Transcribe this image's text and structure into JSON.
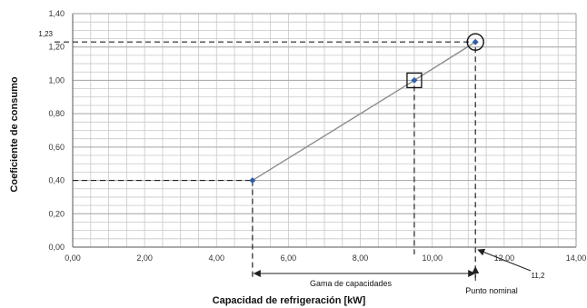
{
  "chart_data": {
    "type": "line",
    "xlabel": "Capacidad de refrigeración [kW]",
    "ylabel": "Coeficiente de consumo",
    "xlim": [
      0,
      14
    ],
    "ylim": [
      0,
      1.4
    ],
    "x_ticks": [
      "0,00",
      "2,00",
      "4,00",
      "6,00",
      "8,00",
      "10,00",
      "12,00",
      "14,00"
    ],
    "y_ticks": [
      "0,00",
      "0,20",
      "0,40",
      "0,60",
      "0,80",
      "1,00",
      "1,20",
      "1,40"
    ],
    "grid": true,
    "series": [
      {
        "x": [
          5.0,
          9.5,
          11.2
        ],
        "y": [
          0.4,
          1.0,
          1.23
        ]
      }
    ],
    "annotations": {
      "y_value_label": "1,23",
      "x_value_label": "11,2",
      "range_label": "Gama de capacidades",
      "nominal_label": "Punto nominal"
    },
    "colors": {
      "line": "#8c8c8c",
      "point": "#2f5fa8",
      "grid": "#c8c8c8",
      "dashed": "#222222"
    }
  }
}
